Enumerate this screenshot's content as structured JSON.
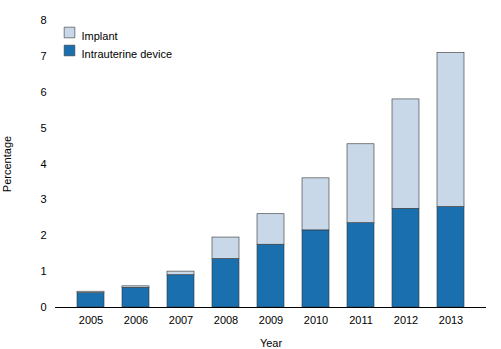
{
  "chart_data": {
    "type": "bar",
    "stacked": true,
    "xlabel": "Year",
    "ylabel": "Percentage",
    "categories": [
      "2005",
      "2006",
      "2007",
      "2008",
      "2009",
      "2010",
      "2011",
      "2012",
      "2013"
    ],
    "series": [
      {
        "name": "Intrauterine device",
        "color": "#1a6faf",
        "values": [
          0.4,
          0.55,
          0.9,
          1.35,
          1.75,
          2.15,
          2.35,
          2.75,
          2.8
        ]
      },
      {
        "name": "Implant",
        "color": "#c8d8e8",
        "values": [
          0.04,
          0.04,
          0.1,
          0.6,
          0.85,
          1.45,
          2.2,
          3.05,
          4.3
        ]
      }
    ],
    "ylim": [
      0,
      8
    ],
    "yticks": [
      0,
      1,
      2,
      3,
      4,
      5,
      6,
      7,
      8
    ],
    "grid": false,
    "legend": "upper left"
  }
}
